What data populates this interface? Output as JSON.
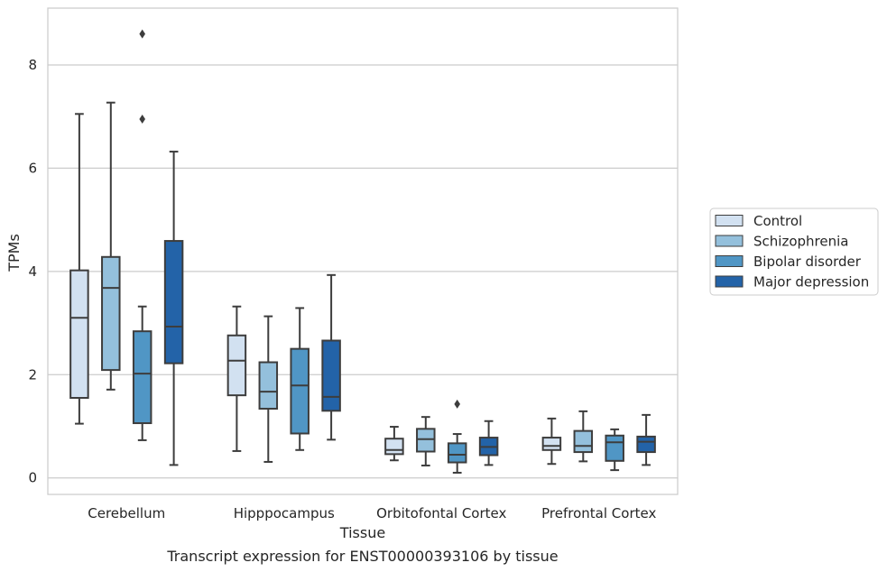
{
  "chart_data": {
    "type": "box",
    "title": "",
    "caption": "Transcript expression for ENST00000393106 by tissue",
    "xlabel": "Tissue",
    "ylabel": "TPMs",
    "ylim": [
      -0.32,
      9.1
    ],
    "yticks": [
      0,
      2,
      4,
      6,
      8
    ],
    "grid": "horizontal",
    "legend_position": "right",
    "categories": [
      "Cerebellum",
      "Hipppocampus",
      "Orbitofontal Cortex",
      "Prefrontal Cortex"
    ],
    "series": [
      {
        "name": "Control",
        "color": "#d2e1f1",
        "boxes": [
          {
            "whisker_low": 1.05,
            "q1": 1.55,
            "median": 3.1,
            "q3": 4.02,
            "whisker_high": 7.05,
            "outliers": []
          },
          {
            "whisker_low": 0.52,
            "q1": 1.6,
            "median": 2.27,
            "q3": 2.76,
            "whisker_high": 3.32,
            "outliers": []
          },
          {
            "whisker_low": 0.34,
            "q1": 0.46,
            "median": 0.54,
            "q3": 0.76,
            "whisker_high": 0.99,
            "outliers": []
          },
          {
            "whisker_low": 0.27,
            "q1": 0.54,
            "median": 0.62,
            "q3": 0.78,
            "whisker_high": 1.15,
            "outliers": []
          }
        ]
      },
      {
        "name": "Schizophrenia",
        "color": "#94c0dc",
        "boxes": [
          {
            "whisker_low": 1.71,
            "q1": 2.09,
            "median": 3.68,
            "q3": 4.28,
            "whisker_high": 7.27,
            "outliers": []
          },
          {
            "whisker_low": 0.31,
            "q1": 1.34,
            "median": 1.67,
            "q3": 2.24,
            "whisker_high": 3.13,
            "outliers": []
          },
          {
            "whisker_low": 0.24,
            "q1": 0.51,
            "median": 0.75,
            "q3": 0.95,
            "whisker_high": 1.18,
            "outliers": []
          },
          {
            "whisker_low": 0.32,
            "q1": 0.5,
            "median": 0.62,
            "q3": 0.91,
            "whisker_high": 1.29,
            "outliers": []
          }
        ]
      },
      {
        "name": "Bipolar disorder",
        "color": "#5096c5",
        "boxes": [
          {
            "whisker_low": 0.73,
            "q1": 1.06,
            "median": 2.02,
            "q3": 2.84,
            "whisker_high": 3.32,
            "outliers": [
              6.95,
              8.6
            ]
          },
          {
            "whisker_low": 0.54,
            "q1": 0.86,
            "median": 1.79,
            "q3": 2.5,
            "whisker_high": 3.29,
            "outliers": []
          },
          {
            "whisker_low": 0.1,
            "q1": 0.3,
            "median": 0.45,
            "q3": 0.67,
            "whisker_high": 0.85,
            "outliers": [
              1.43
            ]
          },
          {
            "whisker_low": 0.15,
            "q1": 0.33,
            "median": 0.69,
            "q3": 0.82,
            "whisker_high": 0.94,
            "outliers": []
          }
        ]
      },
      {
        "name": "Major depression",
        "color": "#2363a8",
        "boxes": [
          {
            "whisker_low": 0.25,
            "q1": 2.22,
            "median": 2.93,
            "q3": 4.59,
            "whisker_high": 6.32,
            "outliers": []
          },
          {
            "whisker_low": 0.74,
            "q1": 1.3,
            "median": 1.57,
            "q3": 2.66,
            "whisker_high": 3.93,
            "outliers": []
          },
          {
            "whisker_low": 0.25,
            "q1": 0.44,
            "median": 0.6,
            "q3": 0.78,
            "whisker_high": 1.1,
            "outliers": []
          },
          {
            "whisker_low": 0.25,
            "q1": 0.5,
            "median": 0.7,
            "q3": 0.8,
            "whisker_high": 1.22,
            "outliers": []
          }
        ]
      }
    ]
  }
}
